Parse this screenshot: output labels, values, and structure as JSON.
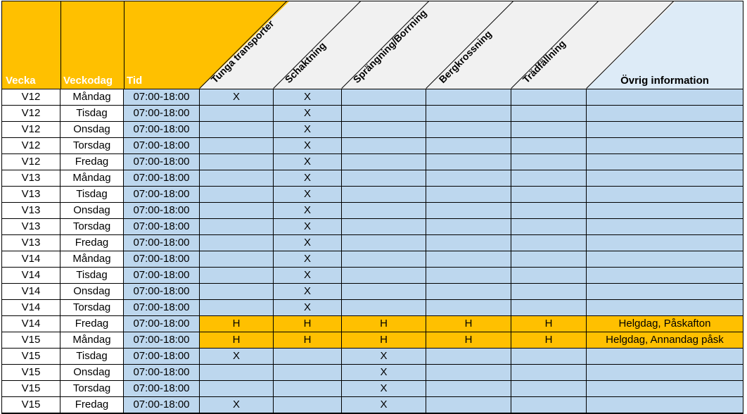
{
  "table": {
    "columns": [
      {
        "key": "vecka",
        "label": "Vecka"
      },
      {
        "key": "veckodag",
        "label": "Veckodag"
      },
      {
        "key": "tid",
        "label": "Tid"
      },
      {
        "key": "tunga_transporter",
        "label": "Tunga transporter"
      },
      {
        "key": "schaktning",
        "label": "Schaktning"
      },
      {
        "key": "sprangning_borrning",
        "label": "Sprängning/Borrning"
      },
      {
        "key": "bergkrossning",
        "label": "Bergkrossning"
      },
      {
        "key": "tradfallning",
        "label": "Trädfällning"
      },
      {
        "key": "ovrig_information",
        "label": "Övrig information"
      }
    ],
    "rows": [
      {
        "vecka": "V12",
        "veckodag": "Måndag",
        "tid": "07:00-18:00",
        "tunga_transporter": "X",
        "schaktning": "X",
        "sprangning_borrning": "",
        "bergkrossning": "",
        "tradfallning": "",
        "ovrig_information": "",
        "holiday": false
      },
      {
        "vecka": "V12",
        "veckodag": "Tisdag",
        "tid": "07:00-18:00",
        "tunga_transporter": "",
        "schaktning": "X",
        "sprangning_borrning": "",
        "bergkrossning": "",
        "tradfallning": "",
        "ovrig_information": "",
        "holiday": false
      },
      {
        "vecka": "V12",
        "veckodag": "Onsdag",
        "tid": "07:00-18:00",
        "tunga_transporter": "",
        "schaktning": "X",
        "sprangning_borrning": "",
        "bergkrossning": "",
        "tradfallning": "",
        "ovrig_information": "",
        "holiday": false
      },
      {
        "vecka": "V12",
        "veckodag": "Torsdag",
        "tid": "07:00-18:00",
        "tunga_transporter": "",
        "schaktning": "X",
        "sprangning_borrning": "",
        "bergkrossning": "",
        "tradfallning": "",
        "ovrig_information": "",
        "holiday": false
      },
      {
        "vecka": "V12",
        "veckodag": "Fredag",
        "tid": "07:00-18:00",
        "tunga_transporter": "",
        "schaktning": "X",
        "sprangning_borrning": "",
        "bergkrossning": "",
        "tradfallning": "",
        "ovrig_information": "",
        "holiday": false
      },
      {
        "vecka": "V13",
        "veckodag": "Måndag",
        "tid": "07:00-18:00",
        "tunga_transporter": "",
        "schaktning": "X",
        "sprangning_borrning": "",
        "bergkrossning": "",
        "tradfallning": "",
        "ovrig_information": "",
        "holiday": false
      },
      {
        "vecka": "V13",
        "veckodag": "Tisdag",
        "tid": "07:00-18:00",
        "tunga_transporter": "",
        "schaktning": "X",
        "sprangning_borrning": "",
        "bergkrossning": "",
        "tradfallning": "",
        "ovrig_information": "",
        "holiday": false
      },
      {
        "vecka": "V13",
        "veckodag": "Onsdag",
        "tid": "07:00-18:00",
        "tunga_transporter": "",
        "schaktning": "X",
        "sprangning_borrning": "",
        "bergkrossning": "",
        "tradfallning": "",
        "ovrig_information": "",
        "holiday": false
      },
      {
        "vecka": "V13",
        "veckodag": "Torsdag",
        "tid": "07:00-18:00",
        "tunga_transporter": "",
        "schaktning": "X",
        "sprangning_borrning": "",
        "bergkrossning": "",
        "tradfallning": "",
        "ovrig_information": "",
        "holiday": false
      },
      {
        "vecka": "V13",
        "veckodag": "Fredag",
        "tid": "07:00-18:00",
        "tunga_transporter": "",
        "schaktning": "X",
        "sprangning_borrning": "",
        "bergkrossning": "",
        "tradfallning": "",
        "ovrig_information": "",
        "holiday": false
      },
      {
        "vecka": "V14",
        "veckodag": "Måndag",
        "tid": "07:00-18:00",
        "tunga_transporter": "",
        "schaktning": "X",
        "sprangning_borrning": "",
        "bergkrossning": "",
        "tradfallning": "",
        "ovrig_information": "",
        "holiday": false
      },
      {
        "vecka": "V14",
        "veckodag": "Tisdag",
        "tid": "07:00-18:00",
        "tunga_transporter": "",
        "schaktning": "X",
        "sprangning_borrning": "",
        "bergkrossning": "",
        "tradfallning": "",
        "ovrig_information": "",
        "holiday": false
      },
      {
        "vecka": "V14",
        "veckodag": "Onsdag",
        "tid": "07:00-18:00",
        "tunga_transporter": "",
        "schaktning": "X",
        "sprangning_borrning": "",
        "bergkrossning": "",
        "tradfallning": "",
        "ovrig_information": "",
        "holiday": false
      },
      {
        "vecka": "V14",
        "veckodag": "Torsdag",
        "tid": "07:00-18:00",
        "tunga_transporter": "",
        "schaktning": "X",
        "sprangning_borrning": "",
        "bergkrossning": "",
        "tradfallning": "",
        "ovrig_information": "",
        "holiday": false
      },
      {
        "vecka": "V14",
        "veckodag": "Fredag",
        "tid": "07:00-18:00",
        "tunga_transporter": "H",
        "schaktning": "H",
        "sprangning_borrning": "H",
        "bergkrossning": "H",
        "tradfallning": "H",
        "ovrig_information": "Helgdag, Påskafton",
        "holiday": true
      },
      {
        "vecka": "V15",
        "veckodag": "Måndag",
        "tid": "07:00-18:00",
        "tunga_transporter": "H",
        "schaktning": "H",
        "sprangning_borrning": "H",
        "bergkrossning": "H",
        "tradfallning": "H",
        "ovrig_information": "Helgdag, Annandag påsk",
        "holiday": true
      },
      {
        "vecka": "V15",
        "veckodag": "Tisdag",
        "tid": "07:00-18:00",
        "tunga_transporter": "X",
        "schaktning": "",
        "sprangning_borrning": "X",
        "bergkrossning": "",
        "tradfallning": "",
        "ovrig_information": "",
        "holiday": false
      },
      {
        "vecka": "V15",
        "veckodag": "Onsdag",
        "tid": "07:00-18:00",
        "tunga_transporter": "",
        "schaktning": "",
        "sprangning_borrning": "X",
        "bergkrossning": "",
        "tradfallning": "",
        "ovrig_information": "",
        "holiday": false
      },
      {
        "vecka": "V15",
        "veckodag": "Torsdag",
        "tid": "07:00-18:00",
        "tunga_transporter": "",
        "schaktning": "",
        "sprangning_borrning": "X",
        "bergkrossning": "",
        "tradfallning": "",
        "ovrig_information": "",
        "holiday": false
      },
      {
        "vecka": "V15",
        "veckodag": "Fredag",
        "tid": "07:00-18:00",
        "tunga_transporter": "X",
        "schaktning": "",
        "sprangning_borrning": "X",
        "bergkrossning": "",
        "tradfallning": "",
        "ovrig_information": "",
        "holiday": false
      }
    ],
    "marks": {
      "activity_mark": "X",
      "holiday_mark": "H"
    }
  },
  "colors": {
    "header_orange": "#FFC000",
    "holiday_row_orange": "#FFC000",
    "body_blue": "#BDD7EE",
    "header_info_blue": "#DDEBF7",
    "diagonal_header_gray": "#F1F1F1",
    "border": "#000000",
    "header_label_text": "#FFFFFF"
  }
}
